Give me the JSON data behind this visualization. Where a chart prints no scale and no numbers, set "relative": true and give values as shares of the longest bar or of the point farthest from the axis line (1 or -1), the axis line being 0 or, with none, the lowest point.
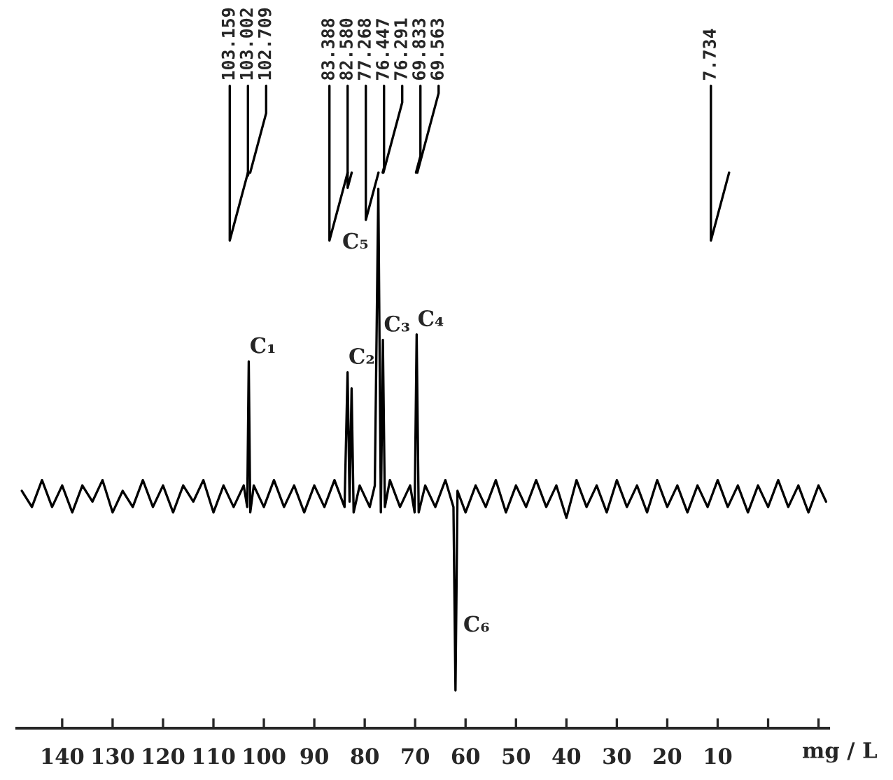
{
  "chart_data": {
    "type": "line",
    "relative": true,
    "xlabel": "mg / L",
    "xlim": [
      149,
      -12
    ],
    "xticks": [
      140,
      130,
      120,
      110,
      100,
      90,
      80,
      70,
      60,
      50,
      40,
      30,
      20,
      10,
      {
        "value": 0,
        "label": null
      },
      {
        "value": -10,
        "label": null
      }
    ],
    "x": [
      148,
      146,
      144,
      142,
      140,
      138,
      136,
      134,
      132,
      130,
      128,
      126,
      124,
      122,
      120,
      118,
      116,
      114,
      112,
      110,
      108,
      106,
      104,
      103.3,
      103.0,
      102.7,
      102,
      100,
      98,
      96,
      94,
      92,
      90,
      88,
      86,
      84,
      83.4,
      83.0,
      82.6,
      82.2,
      81,
      79,
      78,
      77.3,
      76.8,
      76.4,
      76.0,
      75,
      73,
      71,
      70.1,
      69.7,
      69.3,
      68,
      66,
      64,
      62.4,
      62.0,
      61.6,
      60,
      58,
      56,
      54,
      52,
      50,
      48,
      46,
      44,
      42,
      40,
      38,
      36,
      34,
      32,
      30,
      28,
      26,
      24,
      22,
      20,
      18,
      16,
      14,
      12,
      10,
      8,
      6,
      4,
      2,
      0,
      -2,
      -4,
      -6,
      -8,
      -10,
      -11.5
    ],
    "series": [
      {
        "color": "#000000",
        "values": [
          0.44,
          0.41,
          0.46,
          0.41,
          0.45,
          0.4,
          0.45,
          0.42,
          0.46,
          0.4,
          0.44,
          0.41,
          0.46,
          0.41,
          0.45,
          0.4,
          0.45,
          0.42,
          0.46,
          0.4,
          0.45,
          0.41,
          0.45,
          0.41,
          0.68,
          0.4,
          0.45,
          0.41,
          0.46,
          0.41,
          0.45,
          0.4,
          0.45,
          0.41,
          0.46,
          0.41,
          0.66,
          0.42,
          0.63,
          0.4,
          0.45,
          0.41,
          0.45,
          1.0,
          0.4,
          0.72,
          0.41,
          0.46,
          0.41,
          0.45,
          0.4,
          0.73,
          0.4,
          0.45,
          0.41,
          0.46,
          0.41,
          0.07,
          0.44,
          0.4,
          0.45,
          0.41,
          0.46,
          0.4,
          0.45,
          0.41,
          0.46,
          0.41,
          0.45,
          0.39,
          0.46,
          0.41,
          0.45,
          0.4,
          0.46,
          0.41,
          0.45,
          0.4,
          0.46,
          0.41,
          0.45,
          0.4,
          0.45,
          0.41,
          0.46,
          0.41,
          0.45,
          0.4,
          0.45,
          0.41,
          0.46,
          0.41,
          0.45,
          0.4,
          0.45,
          0.42
        ]
      }
    ],
    "annotations": [
      {
        "text": "103.159",
        "x": 103.159
      },
      {
        "text": "103.002",
        "x": 103.002
      },
      {
        "text": "102.709",
        "x": 102.709
      },
      {
        "text": "83.388",
        "x": 83.388
      },
      {
        "text": "82.580",
        "x": 82.58
      },
      {
        "text": "77.268",
        "x": 77.268
      },
      {
        "text": "76.447",
        "x": 76.447
      },
      {
        "text": "76.291",
        "x": 76.291
      },
      {
        "text": "69.833",
        "x": 69.833
      },
      {
        "text": "69.563",
        "x": 69.563
      },
      {
        "text": "7.734",
        "x": 7.734
      },
      {
        "text": "C₁",
        "x": 103.0,
        "y": 0.68
      },
      {
        "text": "C₂",
        "x": 83.4,
        "y": 0.66
      },
      {
        "text": "C₅",
        "x": 77.3,
        "y": 1.0
      },
      {
        "text": "C₃",
        "x": 76.4,
        "y": 0.72
      },
      {
        "text": "C₄",
        "x": 69.7,
        "y": 0.73
      },
      {
        "text": "C₆",
        "x": 62.0,
        "y": 0.19
      }
    ]
  }
}
